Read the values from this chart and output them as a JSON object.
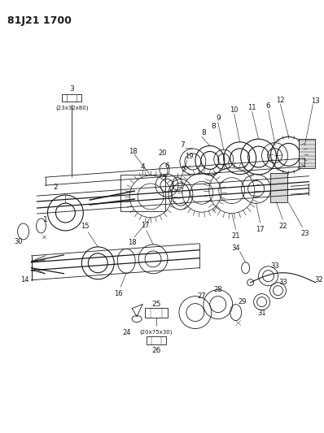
{
  "title": "81J21 1700",
  "bg_color": "#ffffff",
  "line_color": "#1a1a1a",
  "title_fontsize": 9,
  "label_fontsize": 6.5,
  "fig_width": 3.98,
  "fig_height": 5.33,
  "dpi": 100
}
